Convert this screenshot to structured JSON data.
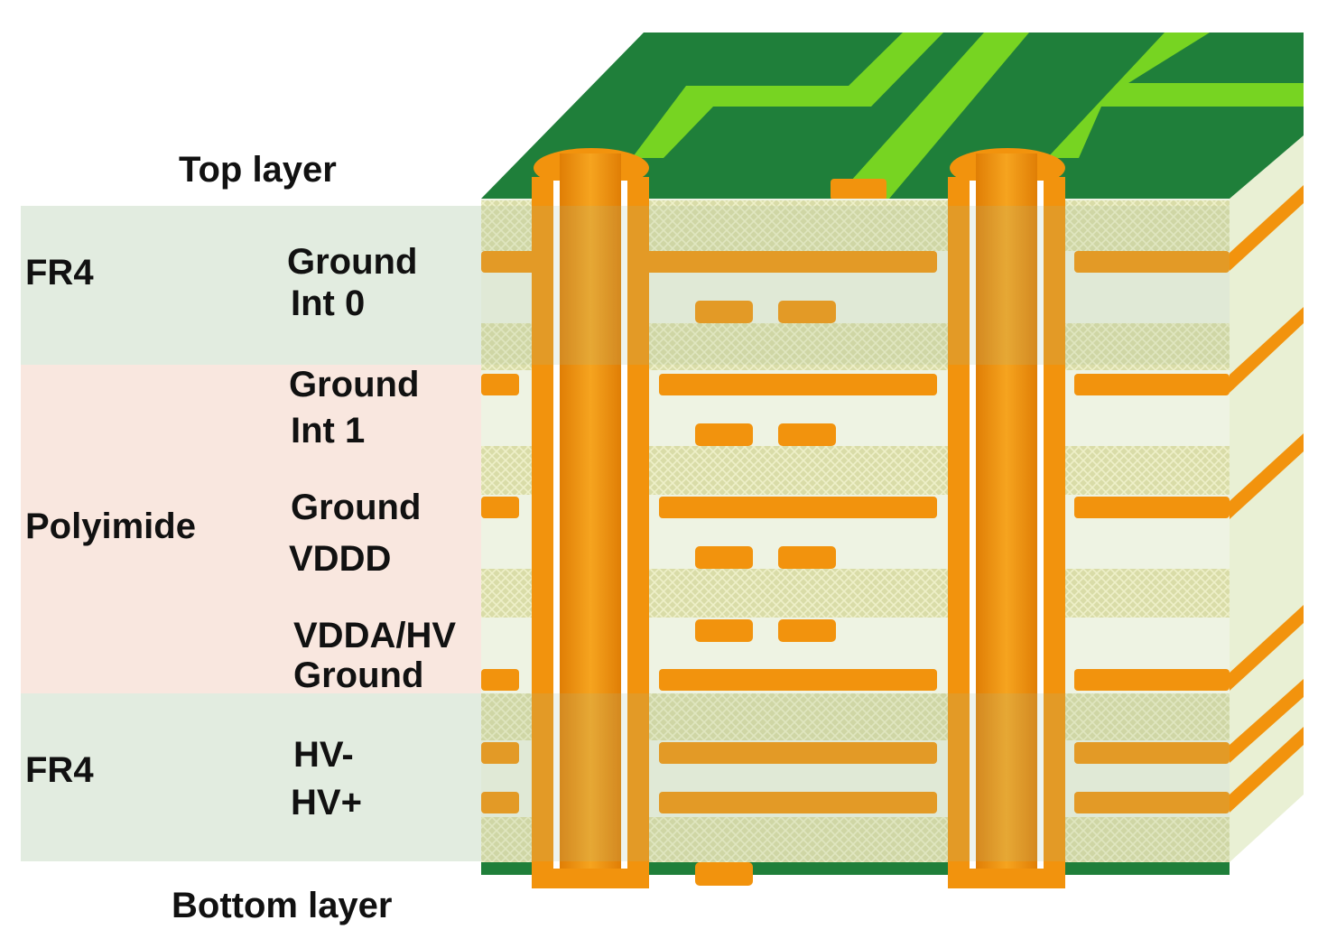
{
  "colors": {
    "fr4_band": "#e2ece0",
    "polyimide_band": "#f9e7df",
    "board_green": "#1f7f3a",
    "trace_green": "#77d422",
    "copper": "#f2930d",
    "prepreg": "#d9dca8",
    "core_white": "#eef3e3"
  },
  "labels": {
    "top_layer": "Top layer",
    "bottom_layer": "Bottom layer",
    "material_top": "FR4",
    "material_middle": "Polyimide",
    "material_bottom": "FR4"
  },
  "layers": [
    {
      "name": "Ground"
    },
    {
      "name": "Int 0"
    },
    {
      "name": "Ground"
    },
    {
      "name": "Int 1"
    },
    {
      "name": "Ground"
    },
    {
      "name": "VDDD"
    },
    {
      "name": "VDDA/HV"
    },
    {
      "name": "Ground"
    },
    {
      "name": "HV-"
    },
    {
      "name": "HV+"
    }
  ]
}
